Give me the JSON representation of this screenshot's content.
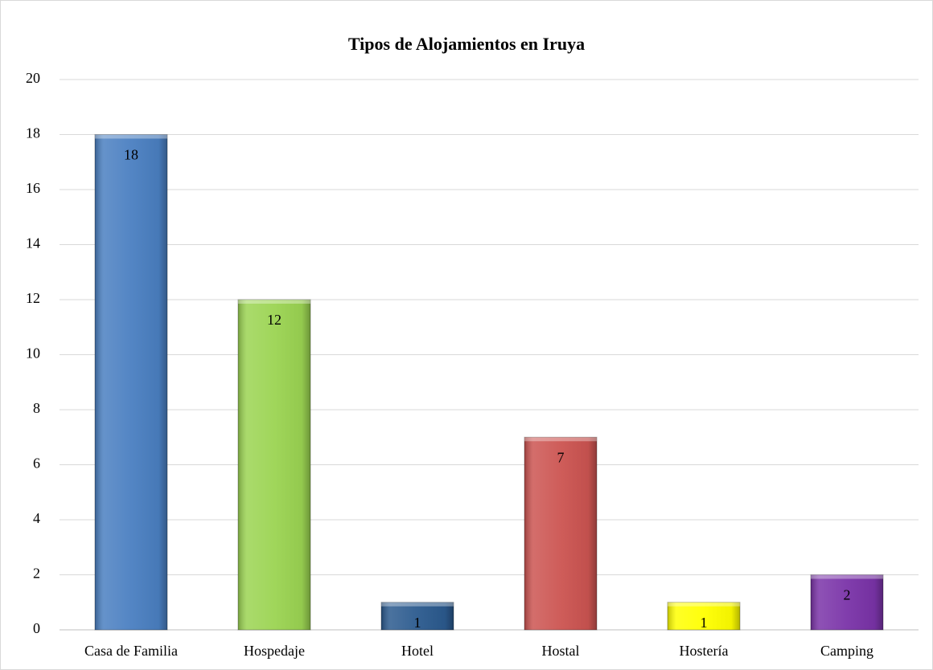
{
  "chart_data": {
    "type": "bar",
    "title": "Tipos de Alojamientos en Iruya",
    "categories": [
      "Casa de Familia",
      "Hospedaje",
      "Hotel",
      "Hostal",
      "Hostería",
      "Camping"
    ],
    "values": [
      18,
      12,
      1,
      7,
      1,
      2
    ],
    "colors": [
      "#4a7fc1",
      "#9bd452",
      "#2b5a8e",
      "#cc5451",
      "#ffff00",
      "#7a33a8"
    ],
    "ylim": [
      0,
      20
    ],
    "yticks": [
      0,
      2,
      4,
      6,
      8,
      10,
      12,
      14,
      16,
      18,
      20
    ],
    "grid": true
  }
}
